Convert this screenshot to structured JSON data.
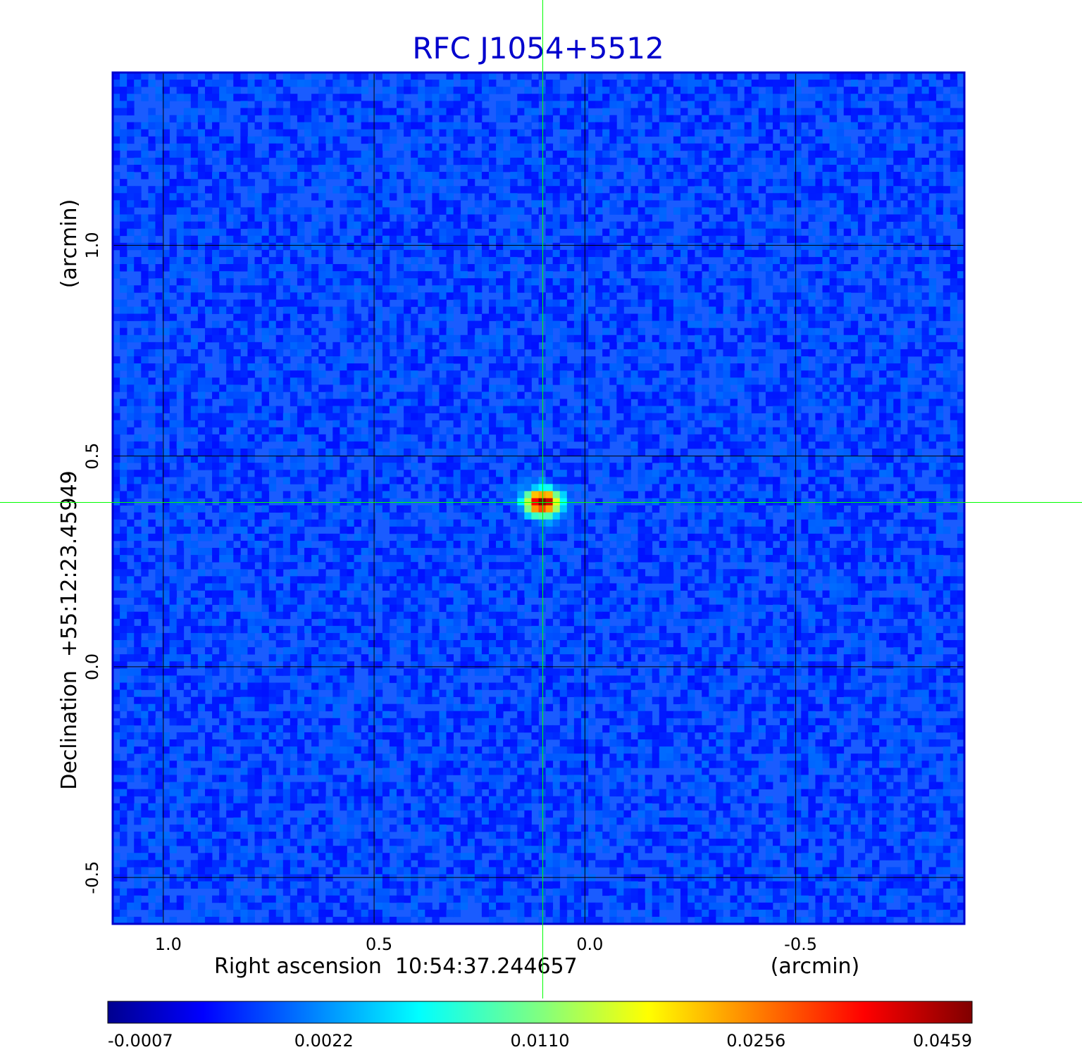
{
  "chart_data": {
    "type": "heatmap",
    "title": "RFC J1054+5512",
    "xlabel": "Right ascension  10:54:37.244657",
    "xunit": "(arcmin)",
    "ylabel": "Declination  +55:12:23.45949",
    "yunit": "(arcmin)",
    "x_ticks": [
      1.0,
      0.5,
      0.0,
      -0.5
    ],
    "x_tick_labels": [
      "1.0",
      "0.5",
      "0.0",
      "-0.5"
    ],
    "y_ticks": [
      1.0,
      0.5,
      0.0,
      -0.5
    ],
    "y_tick_labels": [
      "1.0",
      "0.5",
      "0.0",
      "-0.5"
    ],
    "xlim": [
      1.12,
      -0.9
    ],
    "ylim": [
      -0.61,
      1.41
    ],
    "x_reversed": true,
    "grid": true,
    "crosshair": {
      "x": 0.1,
      "y": 0.39
    },
    "peak_source": {
      "x": 0.1,
      "y": 0.39
    },
    "colorbar": {
      "orientation": "horizontal",
      "ticks": [
        -0.0007,
        0.0022,
        0.011,
        0.0256,
        0.0459
      ],
      "tick_labels": [
        "-0.0007",
        "0.0022",
        "0.0110",
        "0.0256",
        "0.0459"
      ],
      "colormap": "jet"
    },
    "colors": {
      "title": "#0000cd",
      "frame": "#0000cd",
      "crosshair": "#00ff00",
      "grid": "#000000",
      "background_map": "#1a5cff"
    }
  }
}
